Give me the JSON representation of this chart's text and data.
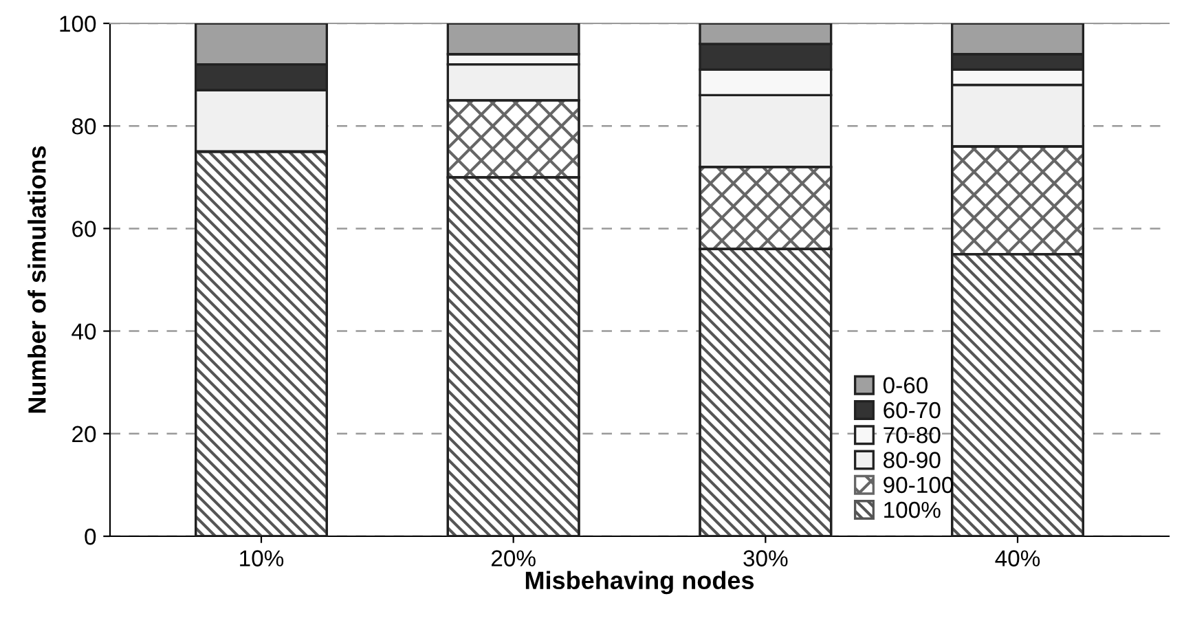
{
  "chart_data": {
    "type": "bar",
    "stacked": true,
    "xlabel": "Misbehaving nodes",
    "ylabel": "Number of simulations",
    "categories": [
      "10%",
      "20%",
      "30%",
      "40%"
    ],
    "series": [
      {
        "name": "100%",
        "color": "#555555",
        "values": [
          75,
          70,
          56,
          55
        ]
      },
      {
        "name": "90-100",
        "color": "#666666",
        "values": [
          0,
          15,
          16,
          21
        ]
      },
      {
        "name": "80-90",
        "color": "#f0f0f0",
        "values": [
          12,
          7,
          14,
          12
        ]
      },
      {
        "name": "70-80",
        "color": "#f8f8f8",
        "values": [
          0,
          2,
          5,
          3
        ]
      },
      {
        "name": "60-70",
        "color": "#333333",
        "values": [
          5,
          0,
          5,
          3
        ]
      },
      {
        "name": "0-60",
        "color": "#a0a0a0",
        "values": [
          8,
          6,
          4,
          6
        ]
      }
    ],
    "ylim": [
      0,
      100
    ],
    "yticks": [
      0,
      20,
      40,
      60,
      80,
      100
    ],
    "grid": "y",
    "legend": "bottom right"
  }
}
